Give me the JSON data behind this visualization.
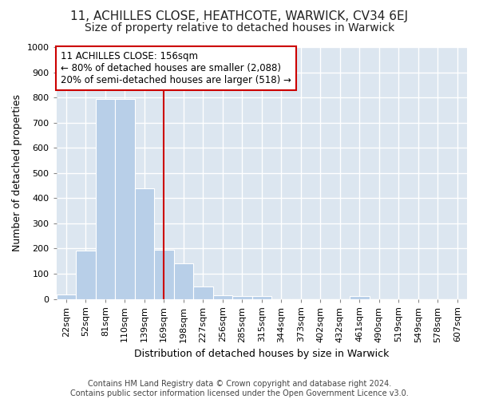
{
  "title": "11, ACHILLES CLOSE, HEATHCOTE, WARWICK, CV34 6EJ",
  "subtitle": "Size of property relative to detached houses in Warwick",
  "xlabel": "Distribution of detached houses by size in Warwick",
  "ylabel": "Number of detached properties",
  "categories": [
    "22sqm",
    "52sqm",
    "81sqm",
    "110sqm",
    "139sqm",
    "169sqm",
    "198sqm",
    "227sqm",
    "256sqm",
    "285sqm",
    "315sqm",
    "344sqm",
    "373sqm",
    "402sqm",
    "432sqm",
    "461sqm",
    "490sqm",
    "519sqm",
    "549sqm",
    "578sqm",
    "607sqm"
  ],
  "values": [
    18,
    193,
    793,
    793,
    440,
    195,
    140,
    50,
    15,
    10,
    11,
    0,
    0,
    0,
    0,
    12,
    0,
    0,
    0,
    0,
    0
  ],
  "bar_color": "#b8cfe8",
  "bar_edgecolor": "#ffffff",
  "vline_color": "#cc0000",
  "annotation_line1": "11 ACHILLES CLOSE: 156sqm",
  "annotation_line2": "← 80% of detached houses are smaller (2,088)",
  "annotation_line3": "20% of semi-detached houses are larger (518) →",
  "annotation_box_color": "#cc0000",
  "ylim": [
    0,
    1000
  ],
  "yticks": [
    0,
    100,
    200,
    300,
    400,
    500,
    600,
    700,
    800,
    900,
    1000
  ],
  "background_color": "#dce6f0",
  "grid_color": "#ffffff",
  "figure_bg": "#ffffff",
  "title_fontsize": 11,
  "subtitle_fontsize": 10,
  "axis_fontsize": 9,
  "tick_fontsize": 8,
  "footer_text": "Contains HM Land Registry data © Crown copyright and database right 2024.\nContains public sector information licensed under the Open Government Licence v3.0.",
  "footer_fontsize": 7
}
